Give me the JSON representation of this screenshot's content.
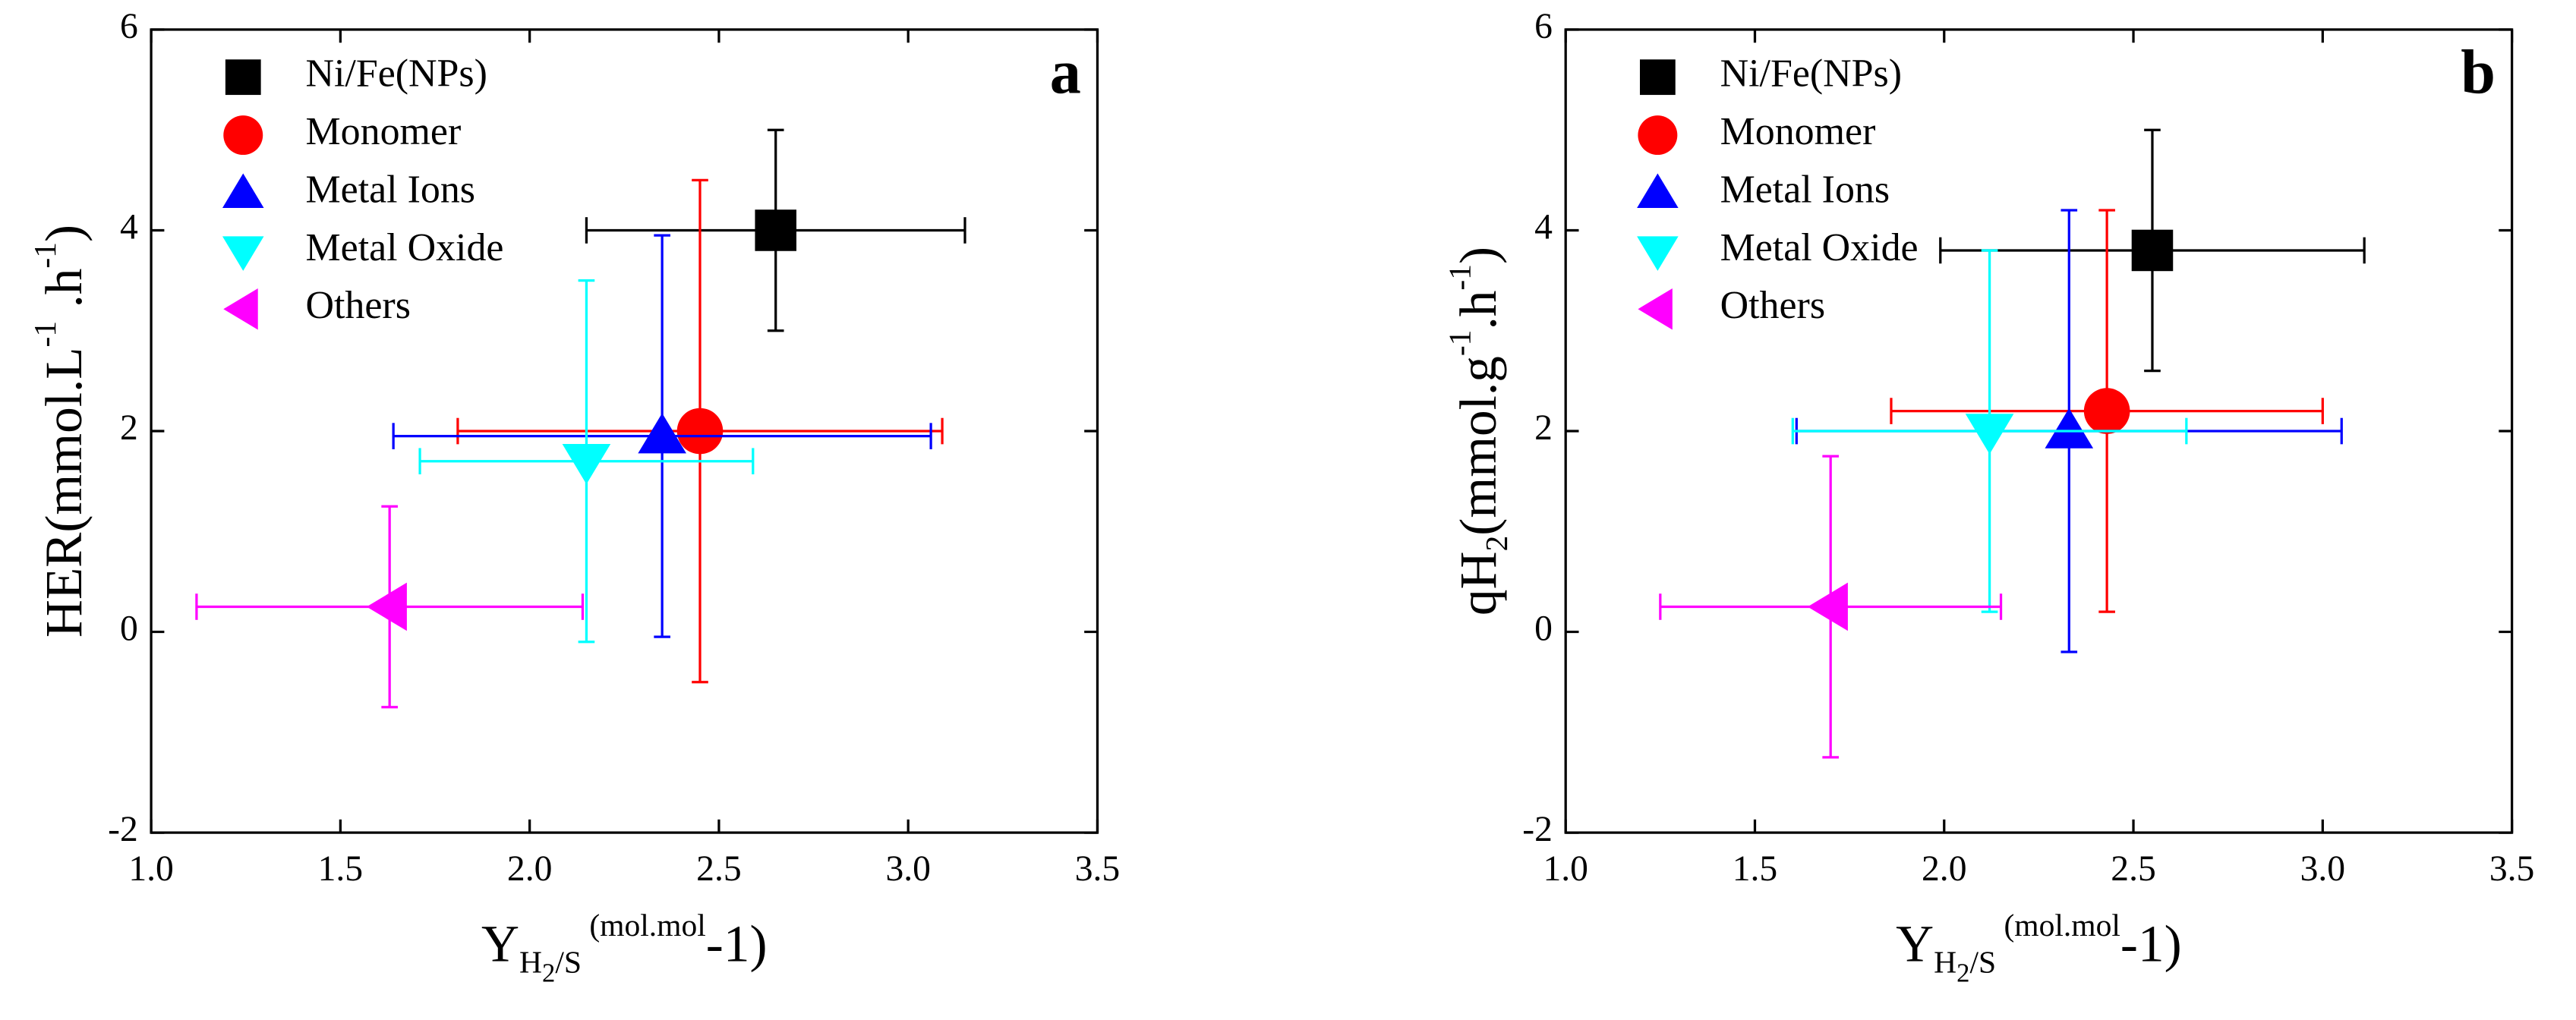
{
  "chart_data": [
    {
      "type": "scatter",
      "panel_label": "a",
      "xlabel": [
        "Y",
        "H",
        "2",
        "/S",
        " (mol.mol",
        "-1",
        ")"
      ],
      "ylabel": [
        "HER(mmol.L",
        "-1",
        " .h",
        "-1",
        ")"
      ],
      "xlim": [
        1.0,
        3.5
      ],
      "ylim": [
        -2,
        6
      ],
      "xticks": [
        {
          "value": 1.0,
          "label": "1.0"
        },
        {
          "value": 1.5,
          "label": "1.5"
        },
        {
          "value": 2.0,
          "label": "2.0"
        },
        {
          "value": 2.5,
          "label": "2.5"
        },
        {
          "value": 3.0,
          "label": "3.0"
        },
        {
          "value": 3.5,
          "label": "3.5"
        }
      ],
      "yticks": [
        -2,
        0,
        2,
        4,
        6
      ],
      "series": [
        {
          "name": "Ni/Fe(NPs)",
          "color": "#000000",
          "marker": "square",
          "x": [
            2.65
          ],
          "values": [
            4
          ],
          "xerr": [
            0.5
          ],
          "yerr": [
            1
          ]
        },
        {
          "name": "Monomer",
          "color": "#ff0000",
          "marker": "circle",
          "x": [
            2.45
          ],
          "values": [
            2
          ],
          "xerr": [
            0.64
          ],
          "yerr": [
            2.5
          ]
        },
        {
          "name": "Metal Ions",
          "color": "#0000ff",
          "marker": "triangle-up",
          "x": [
            2.35
          ],
          "values": [
            1.95
          ],
          "xerr": [
            0.71
          ],
          "yerr": [
            2
          ]
        },
        {
          "name": "Metal Oxide",
          "color": "#00ffff",
          "marker": "triangle-down",
          "x": [
            2.15
          ],
          "values": [
            1.7
          ],
          "xerr": [
            0.44
          ],
          "yerr": [
            1.8
          ]
        },
        {
          "name": "Others",
          "color": "#ff00ff",
          "marker": "triangle-left",
          "x": [
            1.63
          ],
          "values": [
            0.25
          ],
          "xerr": [
            0.51
          ],
          "yerr": [
            1
          ]
        }
      ]
    },
    {
      "type": "scatter",
      "panel_label": "b",
      "xlabel": [
        "Y",
        "H",
        "2",
        "/S",
        " (mol.mol",
        "-1",
        ")"
      ],
      "ylabel": [
        "qH",
        "2",
        "(mmol.g",
        "-1",
        ".h",
        "-1",
        ")"
      ],
      "xlim": [
        1.0,
        3.5
      ],
      "ylim": [
        -2,
        6
      ],
      "xticks": [
        {
          "value": 1.0,
          "label": "1.0"
        },
        {
          "value": 1.5,
          "label": "1.5"
        },
        {
          "value": 2.0,
          "label": "2.0"
        },
        {
          "value": 2.5,
          "label": "2.5"
        },
        {
          "value": 3.0,
          "label": "3.0"
        },
        {
          "value": 3.5,
          "label": "3.5"
        }
      ],
      "yticks": [
        -2,
        0,
        2,
        4,
        6
      ],
      "series": [
        {
          "name": "Ni/Fe(NPs)",
          "color": "#000000",
          "marker": "square",
          "x": [
            2.55
          ],
          "values": [
            3.8
          ],
          "xerr": [
            0.56
          ],
          "yerr": [
            1.2
          ]
        },
        {
          "name": "Monomer",
          "color": "#ff0000",
          "marker": "circle",
          "x": [
            2.43
          ],
          "values": [
            2.2
          ],
          "xerr": [
            0.57
          ],
          "yerr": [
            2
          ]
        },
        {
          "name": "Metal Ions",
          "color": "#0000ff",
          "marker": "triangle-up",
          "x": [
            2.33
          ],
          "values": [
            2.0
          ],
          "xerr": [
            0.72
          ],
          "yerr": [
            2.2
          ]
        },
        {
          "name": "Metal Oxide",
          "color": "#00ffff",
          "marker": "triangle-down",
          "x": [
            2.12
          ],
          "values": [
            2.0
          ],
          "xerr": [
            0.52
          ],
          "yerr": [
            1.8
          ]
        },
        {
          "name": "Others",
          "color": "#ff00ff",
          "marker": "triangle-left",
          "x": [
            1.7
          ],
          "values": [
            0.25
          ],
          "xerr": [
            0.45
          ],
          "yerr": [
            1.5
          ]
        }
      ]
    }
  ]
}
